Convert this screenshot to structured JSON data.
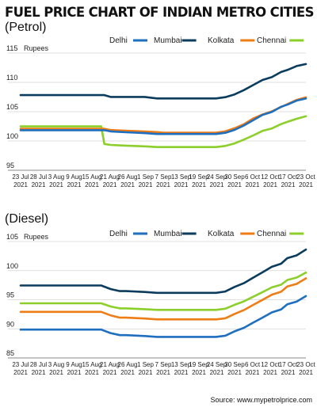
{
  "title": "FUEL PRICE CHART OF INDIAN METRO CITIES",
  "source": "Source: www.mypetrolprice.com",
  "colors": {
    "Delhi": "#1e6fc0",
    "Mumbai": "#0b3c5d",
    "Kolkata": "#ef7d16",
    "Chennai": "#8ccf2a"
  },
  "chart_data": [
    {
      "type": "line",
      "panel_label": "(Petrol)",
      "ylabel": "Rupees",
      "ylim": [
        95,
        115
      ],
      "yticks": [
        95,
        100,
        105,
        110,
        115
      ],
      "grid": true,
      "legend": "top-right",
      "x_tick_labels": [
        [
          "23 Jul",
          "2021"
        ],
        [
          "28 Jul",
          "2021"
        ],
        [
          "3 Aug",
          "2021"
        ],
        [
          "9 Aug",
          "2021"
        ],
        [
          "15 Aug",
          "2021"
        ],
        [
          "21 Aug",
          "2021"
        ],
        [
          "26 Aug",
          "2021"
        ],
        [
          "1 Sep",
          "2021"
        ],
        [
          "7 Sep",
          "2021"
        ],
        [
          "13 Sep",
          "2021"
        ],
        [
          "19 Sep",
          "2021"
        ],
        [
          "24 Sep",
          "2021"
        ],
        [
          "30 Sep",
          "2021"
        ],
        [
          "6 Oct",
          "2021"
        ],
        [
          "12 Oct",
          "2021"
        ],
        [
          "17 Oct",
          "2021"
        ],
        [
          "23 Oct",
          "2021"
        ]
      ],
      "x": [
        "2021-07-23",
        "2021-07-28",
        "2021-08-03",
        "2021-08-09",
        "2021-08-15",
        "2021-08-18",
        "2021-08-19",
        "2021-08-21",
        "2021-08-26",
        "2021-09-01",
        "2021-09-05",
        "2021-09-07",
        "2021-09-13",
        "2021-09-19",
        "2021-09-24",
        "2021-09-27",
        "2021-09-30",
        "2021-10-03",
        "2021-10-06",
        "2021-10-09",
        "2021-10-12",
        "2021-10-15",
        "2021-10-17",
        "2021-10-20",
        "2021-10-23"
      ],
      "series": [
        {
          "name": "Delhi",
          "values": [
            101.84,
            101.84,
            101.84,
            101.84,
            101.84,
            101.84,
            101.84,
            101.64,
            101.49,
            101.34,
            101.19,
            101.19,
            101.19,
            101.19,
            101.19,
            101.39,
            101.89,
            102.64,
            103.54,
            104.44,
            104.94,
            105.84,
            106.19,
            106.89,
            107.24
          ]
        },
        {
          "name": "Mumbai",
          "values": [
            107.83,
            107.83,
            107.83,
            107.83,
            107.83,
            107.83,
            107.83,
            107.52,
            107.52,
            107.52,
            107.26,
            107.26,
            107.26,
            107.26,
            107.26,
            107.47,
            107.95,
            108.67,
            109.54,
            110.41,
            110.89,
            111.77,
            112.11,
            112.78,
            113.12
          ]
        },
        {
          "name": "Kolkata",
          "values": [
            102.08,
            102.08,
            102.08,
            102.08,
            102.08,
            102.08,
            102.08,
            101.86,
            101.74,
            101.62,
            101.52,
            101.42,
            101.42,
            101.42,
            101.42,
            101.64,
            102.17,
            102.87,
            103.84,
            104.52,
            105.06,
            105.79,
            106.29,
            107.0,
            107.45
          ]
        },
        {
          "name": "Chennai",
          "values": [
            102.49,
            102.49,
            102.49,
            102.49,
            102.49,
            102.49,
            99.47,
            99.32,
            99.2,
            99.08,
            98.96,
            98.96,
            98.96,
            98.96,
            98.96,
            99.15,
            99.58,
            100.23,
            100.94,
            101.72,
            102.13,
            102.88,
            103.26,
            103.79,
            104.22
          ]
        }
      ]
    },
    {
      "type": "line",
      "panel_label": "(Diesel)",
      "ylabel": "Rupees",
      "ylim": [
        85,
        105
      ],
      "yticks": [
        85,
        90,
        95,
        100,
        105
      ],
      "grid": true,
      "legend": "top-right",
      "x_tick_labels": [
        [
          "23 Jul",
          "2021"
        ],
        [
          "28 Jul",
          "2021"
        ],
        [
          "3 Aug",
          "2021"
        ],
        [
          "9 Aug",
          "2021"
        ],
        [
          "15 Aug",
          "2021"
        ],
        [
          "21 Aug",
          "2021"
        ],
        [
          "26 Aug",
          "2021"
        ],
        [
          "1 Sep",
          "2021"
        ],
        [
          "7 Sep",
          "2021"
        ],
        [
          "13 Sep",
          "2021"
        ],
        [
          "19 Sep",
          "2021"
        ],
        [
          "24 Sep",
          "2021"
        ],
        [
          "30 Sep",
          "2021"
        ],
        [
          "6 Oct",
          "2021"
        ],
        [
          "12 Oct",
          "2021"
        ],
        [
          "17 Oct",
          "2021"
        ],
        [
          "23 Oct",
          "2021"
        ]
      ],
      "x": [
        "2021-07-23",
        "2021-07-28",
        "2021-08-03",
        "2021-08-09",
        "2021-08-15",
        "2021-08-18",
        "2021-08-21",
        "2021-08-24",
        "2021-08-26",
        "2021-09-01",
        "2021-09-05",
        "2021-09-07",
        "2021-09-13",
        "2021-09-19",
        "2021-09-24",
        "2021-09-27",
        "2021-09-30",
        "2021-10-03",
        "2021-10-06",
        "2021-10-09",
        "2021-10-12",
        "2021-10-15",
        "2021-10-17",
        "2021-10-20",
        "2021-10-23"
      ],
      "series": [
        {
          "name": "Delhi",
          "values": [
            89.87,
            89.87,
            89.87,
            89.87,
            89.87,
            89.87,
            89.27,
            88.92,
            88.92,
            88.77,
            88.62,
            88.62,
            88.62,
            88.62,
            88.62,
            88.82,
            89.57,
            90.17,
            91.07,
            91.92,
            92.82,
            93.32,
            94.22,
            94.67,
            95.62
          ]
        },
        {
          "name": "Mumbai",
          "values": [
            97.45,
            97.45,
            97.45,
            97.45,
            97.45,
            97.45,
            96.84,
            96.48,
            96.48,
            96.33,
            96.19,
            96.19,
            96.19,
            96.19,
            96.19,
            96.41,
            97.21,
            97.84,
            98.8,
            99.71,
            100.66,
            101.19,
            102.14,
            102.62,
            103.63
          ]
        },
        {
          "name": "Kolkata",
          "values": [
            92.92,
            92.92,
            92.92,
            92.92,
            92.92,
            92.92,
            92.32,
            91.92,
            91.92,
            91.77,
            91.62,
            91.62,
            91.62,
            91.62,
            91.62,
            91.82,
            92.57,
            93.22,
            94.12,
            94.97,
            95.87,
            96.37,
            97.27,
            97.72,
            98.67
          ]
        },
        {
          "name": "Chennai",
          "values": [
            94.39,
            94.39,
            94.39,
            94.39,
            94.39,
            94.39,
            93.84,
            93.52,
            93.52,
            93.38,
            93.26,
            93.26,
            93.26,
            93.26,
            93.26,
            93.46,
            94.13,
            94.71,
            95.52,
            96.31,
            97.12,
            97.59,
            98.39,
            98.81,
            99.66
          ]
        }
      ]
    }
  ]
}
